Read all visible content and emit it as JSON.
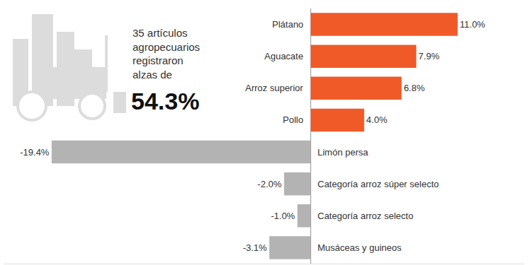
{
  "chart_data": {
    "type": "bar",
    "orientation": "horizontal",
    "categories": [
      "Plátano",
      "Aguacate",
      "Arroz superior",
      "Pollo",
      "Limón persa",
      "Categoría arroz súper selecto",
      "Categoría arroz selecto",
      "Musáceas y guineos"
    ],
    "values": [
      11.0,
      7.9,
      6.8,
      4.0,
      -19.4,
      -2.0,
      -1.0,
      -3.1
    ],
    "value_labels": [
      "11.0%",
      "7.9%",
      "6.8%",
      "4.0%",
      "-19.4%",
      "-2.0%",
      "-1.0%",
      "-3.1%"
    ],
    "colors": [
      "#f05a28",
      "#f05a28",
      "#f05a28",
      "#f05a28",
      "#b3b3b3",
      "#b3b3b3",
      "#b3b3b3",
      "#b3b3b3"
    ],
    "xlim": [
      -23,
      16
    ],
    "xticks": [
      0
    ],
    "grid": true,
    "data_labels": true,
    "tick_labels": false,
    "annotations": [
      {
        "lines": [
          "35 artículos",
          "agropecuarios",
          "registraron",
          "alzas de"
        ]
      },
      {
        "lines": [
          "54.3%"
        ]
      }
    ]
  }
}
